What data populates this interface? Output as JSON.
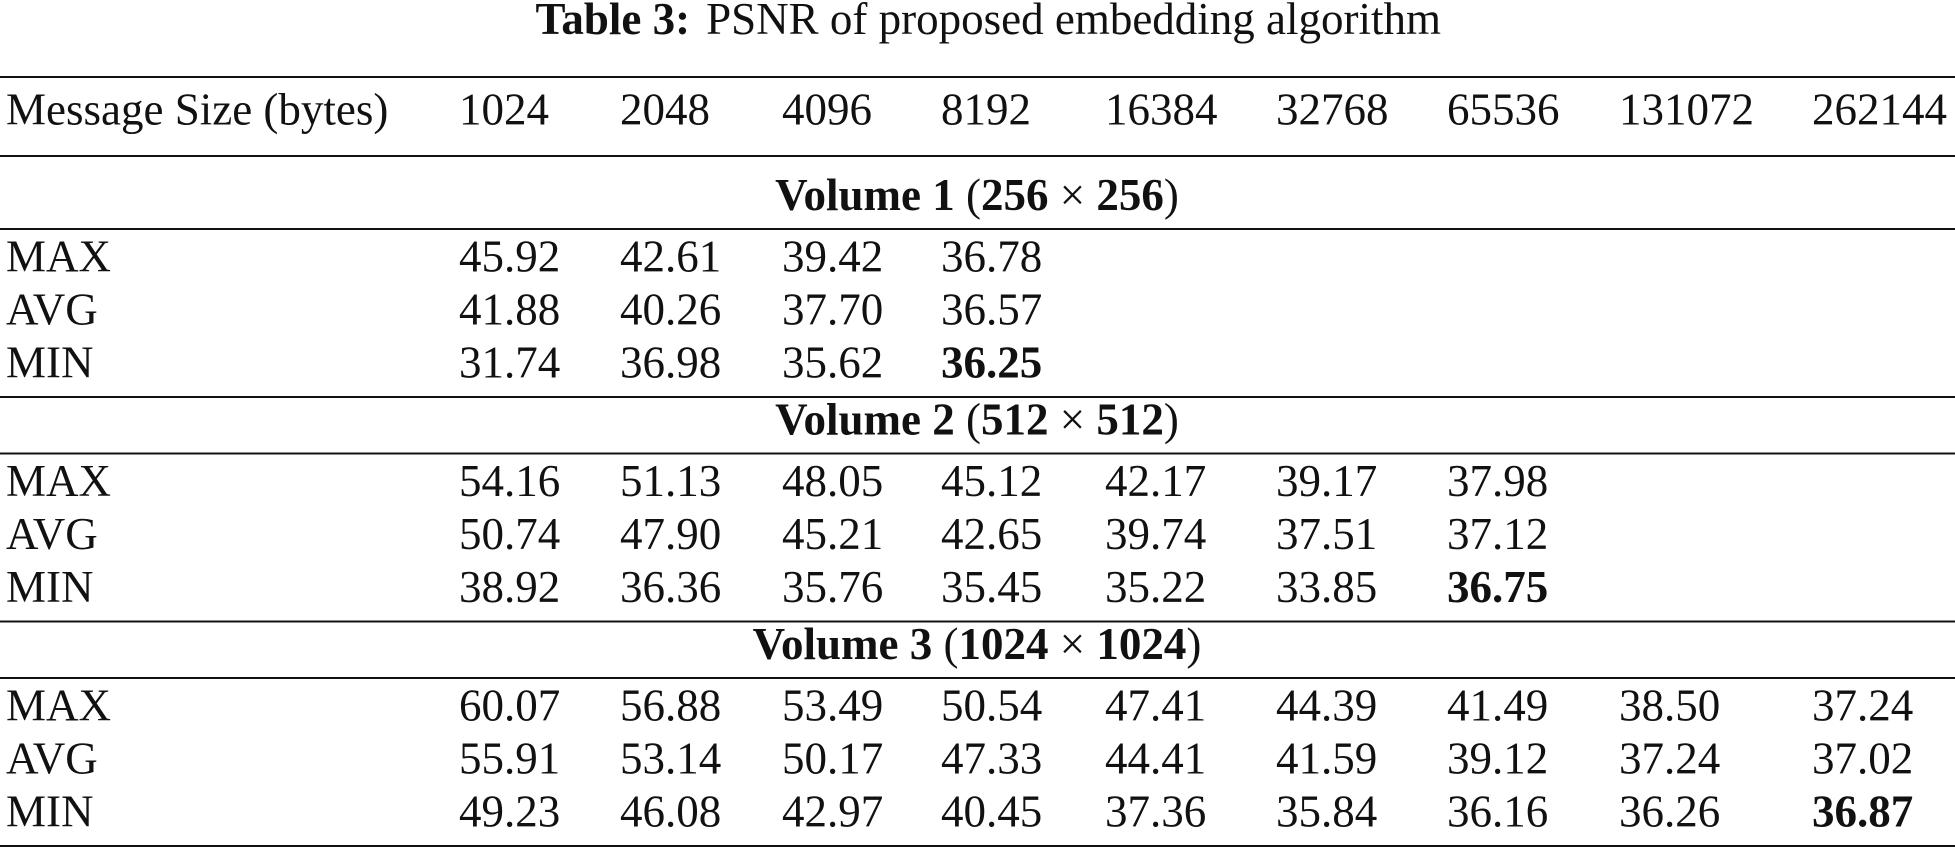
{
  "caption": {
    "label": "Table 3:",
    "text": "PSNR of proposed embedding algorithm"
  },
  "table": {
    "header": [
      "Message Size (bytes)",
      "1024",
      "2048",
      "4096",
      "8192",
      "16384",
      "32768",
      "65536",
      "131072",
      "262144"
    ],
    "sections": [
      {
        "heading": [
          "Volume 1",
          " (",
          "256",
          " × ",
          "256",
          ")"
        ],
        "rows": [
          {
            "label": "MAX",
            "values": [
              "45.92",
              "42.61",
              "39.42",
              "36.78"
            ]
          },
          {
            "label": "AVG",
            "values": [
              "41.88",
              "40.26",
              "37.70",
              "36.57"
            ]
          },
          {
            "label": "MIN",
            "values": [
              "31.74",
              "36.98",
              "35.62",
              "36.25"
            ]
          }
        ]
      },
      {
        "heading": [
          "Volume 2",
          " (",
          "512",
          " × ",
          "512",
          ")"
        ],
        "rows": [
          {
            "label": "MAX",
            "values": [
              "54.16",
              "51.13",
              "48.05",
              "45.12",
              "42.17",
              "39.17",
              "37.98"
            ]
          },
          {
            "label": "AVG",
            "values": [
              "50.74",
              "47.90",
              "45.21",
              "42.65",
              "39.74",
              "37.51",
              "37.12"
            ]
          },
          {
            "label": "MIN",
            "values": [
              "38.92",
              "36.36",
              "35.76",
              "35.45",
              "35.22",
              "33.85",
              "36.75"
            ]
          }
        ]
      },
      {
        "heading": [
          "Volume 3",
          " (",
          "1024",
          " × ",
          "1024",
          ")"
        ],
        "rows": [
          {
            "label": "MAX",
            "values": [
              "60.07",
              "56.88",
              "53.49",
              "50.54",
              "47.41",
              "44.39",
              "41.49",
              "38.50",
              "37.24"
            ]
          },
          {
            "label": "AVG",
            "values": [
              "55.91",
              "53.14",
              "50.17",
              "47.33",
              "44.41",
              "41.59",
              "39.12",
              "37.24",
              "37.02"
            ]
          },
          {
            "label": "MIN",
            "values": [
              "49.23",
              "46.08",
              "42.97",
              "40.45",
              "37.36",
              "35.84",
              "36.16",
              "36.26",
              "36.87"
            ]
          }
        ]
      }
    ]
  }
}
